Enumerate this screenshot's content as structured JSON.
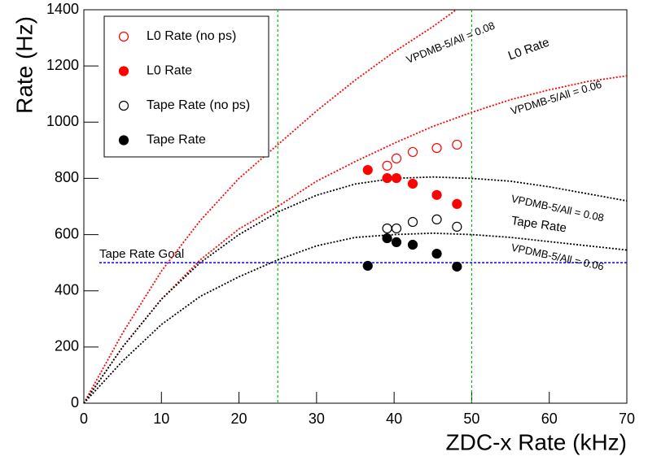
{
  "chart_data": {
    "type": "scatter",
    "xlabel": "ZDC-x Rate (kHz)",
    "ylabel": "Rate (Hz)",
    "xlim": [
      0,
      70
    ],
    "ylim": [
      0,
      1400
    ],
    "xticks": [
      0,
      10,
      20,
      30,
      40,
      50,
      60,
      70
    ],
    "yticks": [
      0,
      200,
      400,
      600,
      800,
      1000,
      1200,
      1400
    ],
    "legend": "top-left",
    "series": [
      {
        "name": "L0 Rate (no ps)",
        "color": "#ff0000",
        "filled": false,
        "x": [
          39.1,
          40.3,
          42.4,
          45.5,
          48.1
        ],
        "values": [
          845,
          871,
          894,
          908,
          920
        ]
      },
      {
        "name": "L0 Rate",
        "color": "#ff0000",
        "filled": true,
        "x": [
          36.6,
          39.1,
          40.3,
          42.4,
          45.5,
          48.1
        ],
        "values": [
          830,
          801,
          801,
          781,
          741,
          709
        ]
      },
      {
        "name": "Tape Rate (no ps)",
        "color": "#000000",
        "filled": false,
        "x": [
          39.1,
          40.3,
          42.4,
          45.5,
          48.1
        ],
        "values": [
          622,
          622,
          645,
          654,
          628
        ]
      },
      {
        "name": "Tape Rate",
        "color": "#000000",
        "filled": true,
        "x": [
          36.6,
          39.1,
          40.3,
          42.4,
          45.5,
          48.1
        ],
        "values": [
          489,
          587,
          573,
          564,
          532,
          486
        ]
      }
    ],
    "curves": [
      {
        "color": "#ff0000",
        "x": [
          0,
          5,
          10,
          15,
          20,
          25,
          30,
          35,
          40,
          45,
          48
        ],
        "values": [
          0,
          250,
          470,
          650,
          800,
          920,
          1040,
          1150,
          1250,
          1340,
          1400
        ]
      },
      {
        "color": "#ff0000",
        "x": [
          0,
          5,
          10,
          15,
          20,
          25,
          30,
          35,
          40,
          45,
          50,
          55,
          60,
          65,
          70
        ],
        "values": [
          0,
          200,
          370,
          510,
          620,
          700,
          790,
          860,
          925,
          985,
          1035,
          1080,
          1115,
          1145,
          1165
        ]
      },
      {
        "color": "#000000",
        "x": [
          0,
          5,
          10,
          15,
          20,
          25,
          30,
          35,
          40,
          45,
          50,
          55,
          60,
          65,
          70
        ],
        "values": [
          0,
          200,
          370,
          500,
          600,
          680,
          740,
          780,
          800,
          805,
          800,
          790,
          770,
          745,
          720
        ]
      },
      {
        "color": "#000000",
        "x": [
          0,
          5,
          10,
          15,
          20,
          25,
          30,
          35,
          40,
          45,
          50,
          55,
          60,
          65,
          70
        ],
        "values": [
          0,
          150,
          280,
          380,
          450,
          510,
          560,
          590,
          600,
          605,
          600,
          590,
          575,
          560,
          545
        ]
      }
    ],
    "goal": {
      "label": "Tape Rate Goal",
      "value": 500,
      "color": "#0000ff"
    },
    "vlines": {
      "values": [
        25,
        50
      ],
      "color": "#00bb00"
    },
    "annotations": [
      {
        "text": "VPDMB-5/All = 0.08",
        "color": "#ff0000"
      },
      {
        "text": "L0 Rate",
        "color": "#ff0000"
      },
      {
        "text": "VPDMB-5/All = 0.06",
        "color": "#ff0000"
      },
      {
        "text": "VPDMB-5/All = 0.08",
        "color": "#000000"
      },
      {
        "text": "Tape Rate",
        "color": "#000000"
      },
      {
        "text": "VPDMB-5/All = 0.06",
        "color": "#000000"
      }
    ]
  }
}
